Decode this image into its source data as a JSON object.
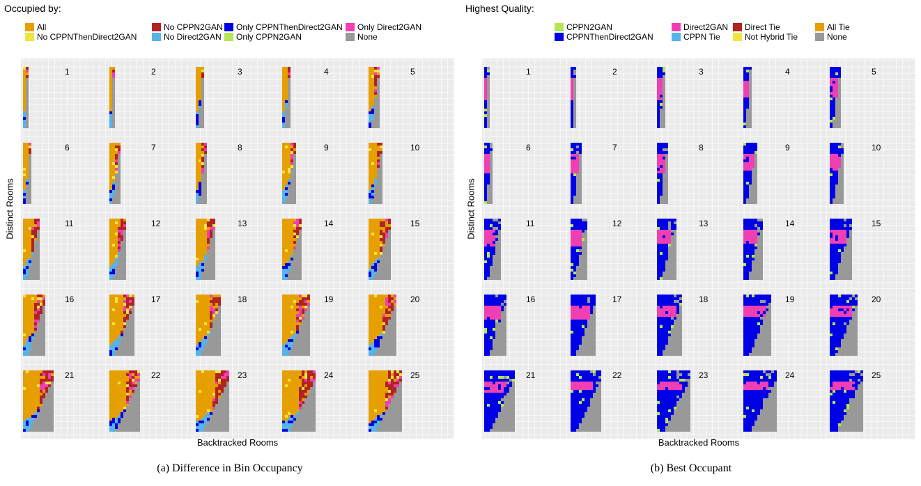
{
  "colors": {
    "panel_bg": "#ebebeb",
    "grid": "#ffffff",
    "orange": "#e69f00",
    "yellow": "#f0e442",
    "darkred": "#b22222",
    "skyblue": "#56b4e9",
    "blue": "#0000e6",
    "lightgreen": "#b5e655",
    "pink": "#ef3fb3",
    "gray": "#999999"
  },
  "panel_a": {
    "heading": "Occupied by:",
    "caption": "(a) Difference in Bin Occupancy",
    "xlabel": "Backtracked Rooms",
    "ylabel": "Distinct Rooms",
    "legend": [
      {
        "label": "All",
        "color": "#e69f00"
      },
      {
        "label": "No CPPNThenDirect2GAN",
        "color": "#f0e442"
      },
      {
        "label": "No CPPN2GAN",
        "color": "#b22222"
      },
      {
        "label": "No Direct2GAN",
        "color": "#56b4e9"
      },
      {
        "label": "Only CPPNThenDirect2GAN",
        "color": "#0000e6"
      },
      {
        "label": "Only CPPN2GAN",
        "color": "#b5e655"
      },
      {
        "label": "Only Direct2GAN",
        "color": "#ef3fb3"
      },
      {
        "label": "None",
        "color": "#999999"
      }
    ]
  },
  "panel_b": {
    "heading": "Highest Quality:",
    "caption": "(b) Best Occupant",
    "xlabel": "Backtracked Rooms",
    "ylabel": "Distinct Rooms",
    "legend": [
      {
        "label": "CPPN2GAN",
        "color": "#b5e655"
      },
      {
        "label": "CPPNThenDirect2GAN",
        "color": "#0000e6"
      },
      {
        "label": "Direct2GAN",
        "color": "#ef3fb3"
      },
      {
        "label": "CPPN Tie",
        "color": "#56b4e9"
      },
      {
        "label": "Direct Tie",
        "color": "#b22222"
      },
      {
        "label": "Not Hybrid Tie",
        "color": "#f0e442"
      },
      {
        "label": "All Tie",
        "color": "#e69f00"
      },
      {
        "label": "None",
        "color": "#999999"
      }
    ]
  },
  "chart_data": [
    {
      "type": "heatmap",
      "title": "Occupied by:",
      "xlabel": "Backtracked Rooms",
      "ylabel": "Distinct Rooms",
      "grid": true,
      "legend_position": "top",
      "facets": [
        "1",
        "2",
        "3",
        "4",
        "5",
        "6",
        "7",
        "8",
        "9",
        "10",
        "11",
        "12",
        "13",
        "14",
        "15",
        "16",
        "17",
        "18",
        "19",
        "20",
        "21",
        "22",
        "23",
        "24",
        "25"
      ],
      "categories": [
        "All",
        "No CPPNThenDirect2GAN",
        "No CPPN2GAN",
        "No Direct2GAN",
        "Only CPPNThenDirect2GAN",
        "Only CPPN2GAN",
        "Only Direct2GAN",
        "None"
      ],
      "caption": "(a) Difference in Bin Occupancy"
    },
    {
      "type": "heatmap",
      "title": "Highest Quality:",
      "xlabel": "Backtracked Rooms",
      "ylabel": "Distinct Rooms",
      "grid": true,
      "legend_position": "top",
      "facets": [
        "1",
        "2",
        "3",
        "4",
        "5",
        "6",
        "7",
        "8",
        "9",
        "10",
        "11",
        "12",
        "13",
        "14",
        "15",
        "16",
        "17",
        "18",
        "19",
        "20",
        "21",
        "22",
        "23",
        "24",
        "25"
      ],
      "categories": [
        "CPPN2GAN",
        "CPPNThenDirect2GAN",
        "Direct2GAN",
        "CPPN Tie",
        "Direct Tie",
        "Not Hybrid Tie",
        "All Tie",
        "None"
      ],
      "caption": "(b) Best Occupant"
    }
  ]
}
